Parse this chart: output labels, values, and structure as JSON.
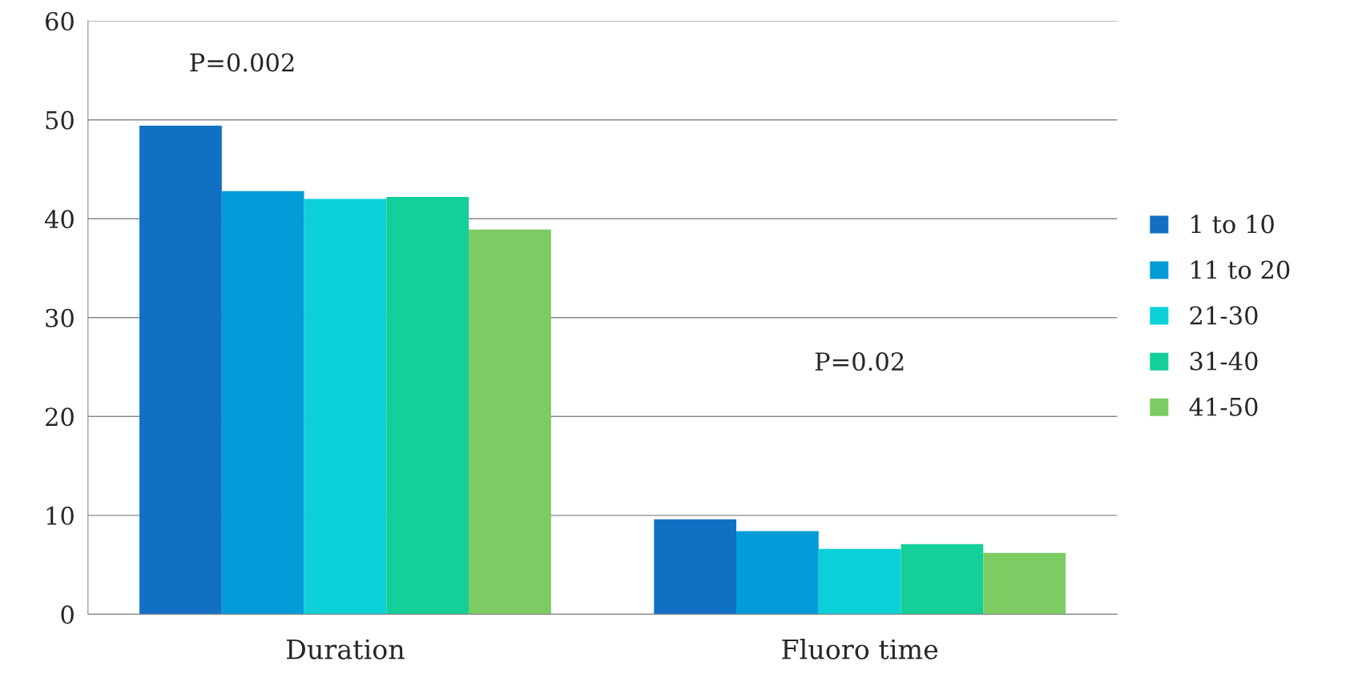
{
  "chart_data": {
    "type": "bar",
    "categories": [
      "Duration",
      "Fluoro time"
    ],
    "series": [
      {
        "name": "1 to 10",
        "color": "#1170c4",
        "values": [
          49.4,
          9.6
        ]
      },
      {
        "name": "11 to 20",
        "color": "#039cd8",
        "values": [
          42.8,
          8.4
        ]
      },
      {
        "name": "21-30",
        "color": "#0cd1d9",
        "values": [
          42.0,
          6.6
        ]
      },
      {
        "name": "31-40",
        "color": "#13cf98",
        "values": [
          42.2,
          7.1
        ]
      },
      {
        "name": "41-50",
        "color": "#7ccb63",
        "values": [
          38.9,
          6.2
        ]
      }
    ],
    "ylim": [
      0,
      60
    ],
    "yticks": [
      0,
      10,
      20,
      30,
      40,
      50,
      60
    ],
    "grid": "y",
    "legend": "right",
    "annotations": [
      "P=0.002",
      "P=0.02"
    ]
  }
}
